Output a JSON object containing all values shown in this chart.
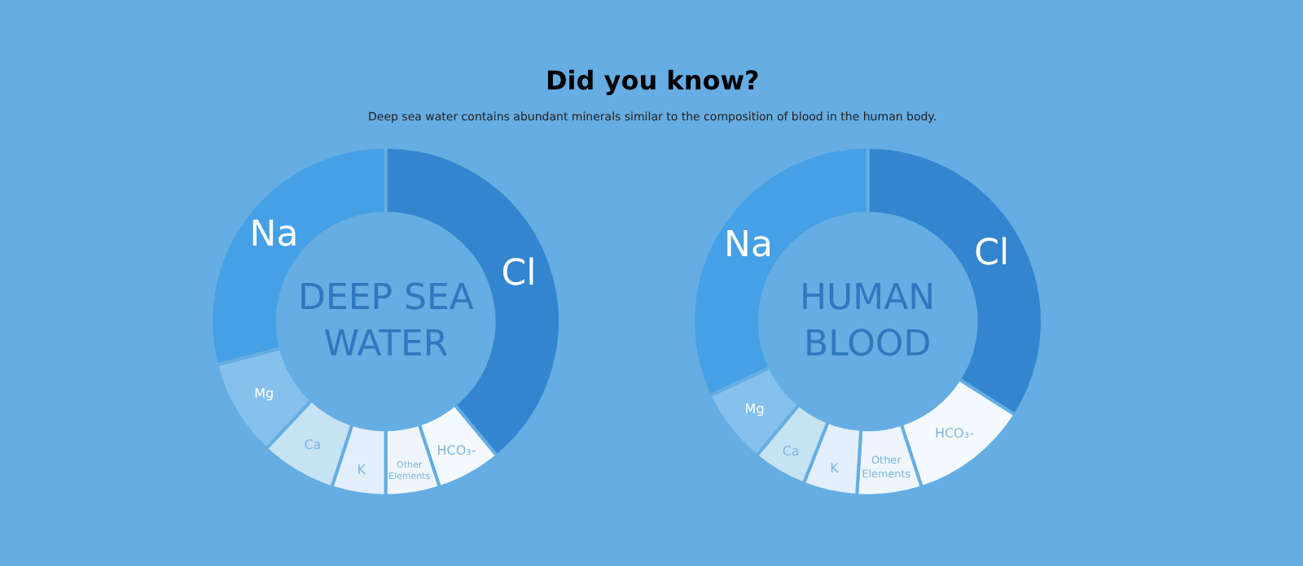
{
  "chart_data": [
    {
      "type": "donut",
      "title": "DEEP SEA WATER",
      "annotations": [
        "Did you know?",
        "Deep sea water contains abundant minerals similar to the composition of blood in the human body."
      ],
      "categories": [
        "Cl",
        "HCO₃-",
        "Other Elements",
        "K",
        "Ca",
        "Mg",
        "Na"
      ],
      "values": [
        39,
        6,
        5,
        5,
        7,
        9,
        29
      ],
      "colors": [
        "#3385cf",
        "#f4f9fd",
        "#eef6fc",
        "#e2effa",
        "#c5e3f3",
        "#86c0ec",
        "#45a0e6"
      ]
    },
    {
      "type": "donut",
      "title": "HUMAN BLOOD",
      "categories": [
        "Cl",
        "HCO₃-",
        "Other Elements",
        "K",
        "Ca",
        "Mg",
        "Na"
      ],
      "values": [
        34,
        11,
        6,
        5,
        5,
        7,
        32
      ],
      "colors": [
        "#3385cf",
        "#f4f9fd",
        "#eef6fc",
        "#e2effa",
        "#c5e3f3",
        "#86c0ec",
        "#45a0e6"
      ]
    }
  ]
}
